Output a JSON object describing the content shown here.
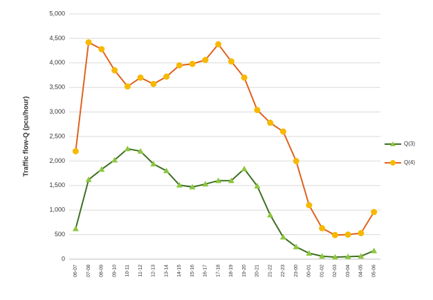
{
  "chart_data": {
    "type": "line",
    "y_label": "Traffic flow-Q  (pcu/hour)",
    "categories": [
      "06-07",
      "07-08",
      "08-09",
      "09-10",
      "10-11",
      "11-12",
      "12-13",
      "13-14",
      "14-15",
      "15-16",
      "16-17",
      "17-18",
      "18-19",
      "19-20",
      "20-21",
      "21-22",
      "22-23",
      "23-00",
      "00-01",
      "01-02",
      "02-03",
      "03-04",
      "04-05",
      "05-06"
    ],
    "series": [
      {
        "name": "Q(3)",
        "color": "#8dc63f",
        "line_color": "#3b6e1e",
        "marker": "triangle",
        "values": [
          620,
          1620,
          1830,
          2020,
          2250,
          2200,
          1940,
          1800,
          1510,
          1470,
          1530,
          1600,
          1600,
          1840,
          1490,
          900,
          450,
          250,
          120,
          60,
          40,
          50,
          60,
          170
        ]
      },
      {
        "name": "Q(4)",
        "color": "#f7b900",
        "line_color": "#e0601a",
        "marker": "circle",
        "values": [
          2200,
          4420,
          4280,
          3850,
          3520,
          3700,
          3570,
          3720,
          3950,
          3980,
          4060,
          4380,
          4030,
          3700,
          3040,
          2780,
          2600,
          2000,
          1100,
          630,
          490,
          500,
          530,
          960
        ]
      }
    ],
    "ylim": [
      0,
      5000
    ],
    "yticks": [
      0,
      500,
      {
        "value": 1000,
        "label": "1,000"
      },
      {
        "value": 1500,
        "label": "1,500"
      },
      {
        "value": 2000,
        "label": "2,000"
      },
      {
        "value": 2500,
        "label": "2,500"
      },
      {
        "value": 3000,
        "label": "3,000"
      },
      {
        "value": 3500,
        "label": "3,500"
      },
      {
        "value": 4000,
        "label": "4,000"
      },
      {
        "value": 4500,
        "label": "4,500"
      },
      {
        "value": 5000,
        "label": "5,000"
      }
    ],
    "grid": true,
    "legend": "right"
  }
}
